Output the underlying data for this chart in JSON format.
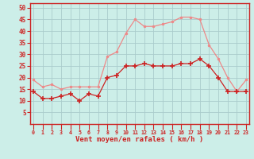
{
  "hours": [
    0,
    1,
    2,
    3,
    4,
    5,
    6,
    7,
    8,
    9,
    10,
    11,
    12,
    13,
    14,
    15,
    16,
    17,
    18,
    19,
    20,
    21,
    22,
    23
  ],
  "wind_avg": [
    14,
    11,
    11,
    12,
    13,
    10,
    13,
    12,
    20,
    21,
    25,
    25,
    26,
    25,
    25,
    25,
    26,
    26,
    28,
    25,
    20,
    14,
    14,
    14
  ],
  "wind_gust": [
    19,
    16,
    17,
    15,
    16,
    16,
    16,
    16,
    29,
    31,
    39,
    45,
    42,
    42,
    43,
    44,
    46,
    46,
    45,
    34,
    28,
    20,
    14,
    19
  ],
  "xlabel": "Vent moyen/en rafales ( km/h )",
  "ylim": [
    0,
    52
  ],
  "yticks": [
    5,
    10,
    15,
    20,
    25,
    30,
    35,
    40,
    45,
    50
  ],
  "bg_color": "#cceee8",
  "grid_color": "#aacccc",
  "line_avg_color": "#cc2222",
  "line_gust_color": "#ee8888",
  "spine_color": "#cc2222",
  "axis_label_color": "#cc2222",
  "tick_color": "#cc2222"
}
